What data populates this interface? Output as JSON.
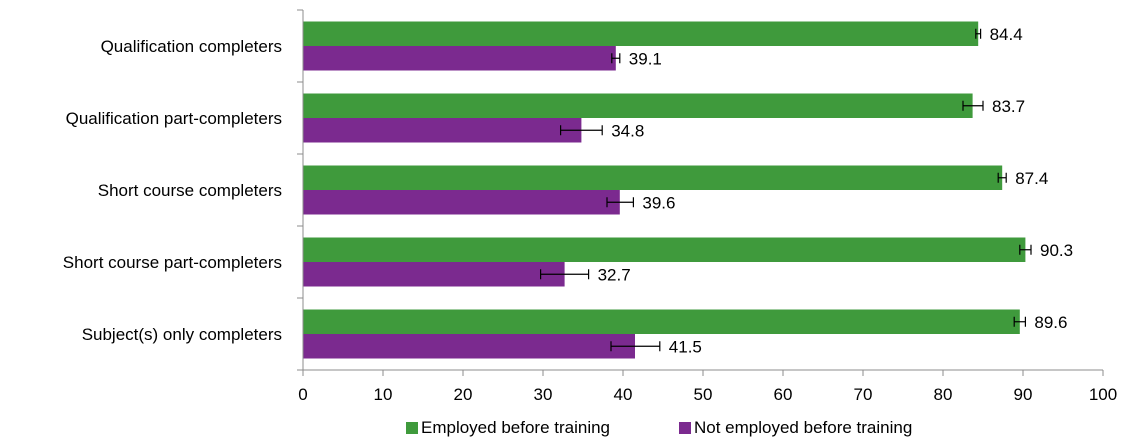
{
  "chart_data": {
    "type": "bar",
    "orientation": "horizontal",
    "categories": [
      "Qualification completers",
      "Qualification part-completers",
      "Short course completers",
      "Short course part-completers",
      "Subject(s) only completers"
    ],
    "series": [
      {
        "name": "Employed before training",
        "color": "#3f9a3c",
        "values": [
          84.4,
          83.7,
          87.4,
          90.3,
          89.6
        ],
        "value_labels": [
          "84.4",
          "83.7",
          "87.4",
          "90.3",
          "89.6"
        ],
        "error_low": [
          84.1,
          82.5,
          86.9,
          89.6,
          88.9
        ],
        "error_high": [
          84.7,
          85.0,
          87.9,
          91.0,
          90.3
        ]
      },
      {
        "name": "Not employed before training",
        "color": "#7b2a8f",
        "values": [
          39.1,
          34.8,
          39.6,
          32.7,
          41.5
        ],
        "value_labels": [
          "39.1",
          "34.8",
          "39.6",
          "32.7",
          "41.5"
        ],
        "error_low": [
          38.6,
          32.2,
          38.0,
          29.7,
          38.5
        ],
        "error_high": [
          39.6,
          37.4,
          41.3,
          35.7,
          44.6
        ]
      }
    ],
    "xlim": [
      0,
      100
    ],
    "xticks": [
      "0",
      "10",
      "20",
      "30",
      "40",
      "50",
      "60",
      "70",
      "80",
      "90",
      "100"
    ],
    "title": "",
    "xlabel": "",
    "ylabel": "",
    "grid": false,
    "legend_position": "bottom"
  }
}
